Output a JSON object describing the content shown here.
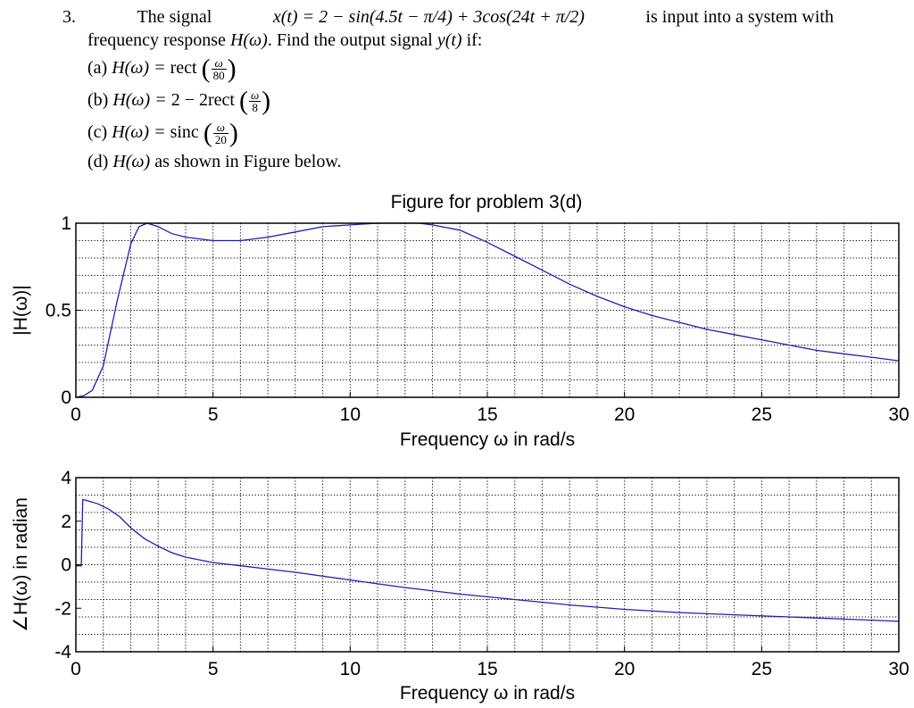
{
  "problem": {
    "number": "3.",
    "intro_a": "The signal ",
    "signal": "x(t) = 2 − sin(4.5t − π/4) + 3cos(24t + π/2)",
    "intro_b": " is input into a system with",
    "line2_a": "frequency response ",
    "Hw": "H(ω)",
    "line2_b": ". Find the output signal ",
    "yt": "y(t)",
    "line2_c": " if:",
    "parts": [
      {
        "label": "(a)",
        "lhs": "H(ω) = ",
        "fn": "rect",
        "num": "ω",
        "den": "80",
        "prefix": ""
      },
      {
        "label": "(b)",
        "lhs": "H(ω) = ",
        "fn": "2rect",
        "num": "ω",
        "den": "8",
        "prefix": "2 − "
      },
      {
        "label": "(c)",
        "lhs": "H(ω) = ",
        "fn": "sinc",
        "num": "ω",
        "den": "20",
        "prefix": ""
      }
    ],
    "part_d": {
      "label": "(d)",
      "lhs": "H(ω)",
      "text": " as shown in Figure below."
    }
  },
  "chart_data": [
    {
      "type": "line",
      "title": "Figure for problem 3(d)",
      "xlabel": "Frequency ω in rad/s",
      "ylabel": "|H(ω)|",
      "xlim": [
        0,
        30
      ],
      "ylim": [
        0,
        1
      ],
      "xticks": [
        0,
        5,
        10,
        15,
        20,
        25,
        30
      ],
      "yticks": [
        0,
        0.5,
        1
      ],
      "grid": true,
      "color": "#1f1fb4",
      "series": [
        {
          "x": [
            0,
            0.3,
            0.6,
            1.0,
            1.5,
            2.0,
            2.3,
            2.6,
            3.0,
            3.5,
            4.0,
            5.0,
            6.0,
            7.0,
            8.0,
            9.0,
            10.0,
            11.0,
            12.0,
            12.5,
            13.0,
            14.0,
            15.0,
            16.0,
            17.0,
            18.0,
            19.0,
            20.0,
            21.0,
            22.0,
            23.0,
            24.0,
            25.0,
            26.0,
            27.0,
            28.0,
            29.0,
            30.0
          ],
          "y": [
            0.0,
            0.01,
            0.04,
            0.18,
            0.55,
            0.88,
            0.98,
            1.0,
            0.98,
            0.94,
            0.92,
            0.9,
            0.9,
            0.92,
            0.95,
            0.98,
            0.99,
            1.0,
            1.0,
            1.0,
            0.99,
            0.96,
            0.89,
            0.81,
            0.73,
            0.65,
            0.58,
            0.52,
            0.47,
            0.43,
            0.39,
            0.36,
            0.33,
            0.3,
            0.27,
            0.25,
            0.23,
            0.21
          ]
        }
      ]
    },
    {
      "type": "line",
      "title": "",
      "xlabel": "Frequency ω in rad/s",
      "ylabel": "∠H(ω) in radian",
      "xlim": [
        0,
        30
      ],
      "ylim": [
        -4,
        4
      ],
      "xticks": [
        0,
        5,
        10,
        15,
        20,
        25,
        30
      ],
      "yticks": [
        -4,
        -2,
        0,
        2,
        4
      ],
      "grid": true,
      "color": "#1f1fb4",
      "series": [
        {
          "x": [
            0,
            0.2,
            0.25,
            0.4,
            0.8,
            1.2,
            1.6,
            2.0,
            2.5,
            3.0,
            3.5,
            4.0,
            5.0,
            6.0,
            8.0,
            10.0,
            12.0,
            14.0,
            16.0,
            18.0,
            20.0,
            22.0,
            24.0,
            26.0,
            28.0,
            30.0
          ],
          "y": [
            -0.05,
            -0.05,
            3.0,
            2.95,
            2.8,
            2.55,
            2.2,
            1.7,
            1.2,
            0.85,
            0.55,
            0.35,
            0.1,
            -0.05,
            -0.35,
            -0.7,
            -1.05,
            -1.35,
            -1.6,
            -1.85,
            -2.05,
            -2.2,
            -2.3,
            -2.4,
            -2.5,
            -2.6
          ]
        }
      ]
    }
  ]
}
